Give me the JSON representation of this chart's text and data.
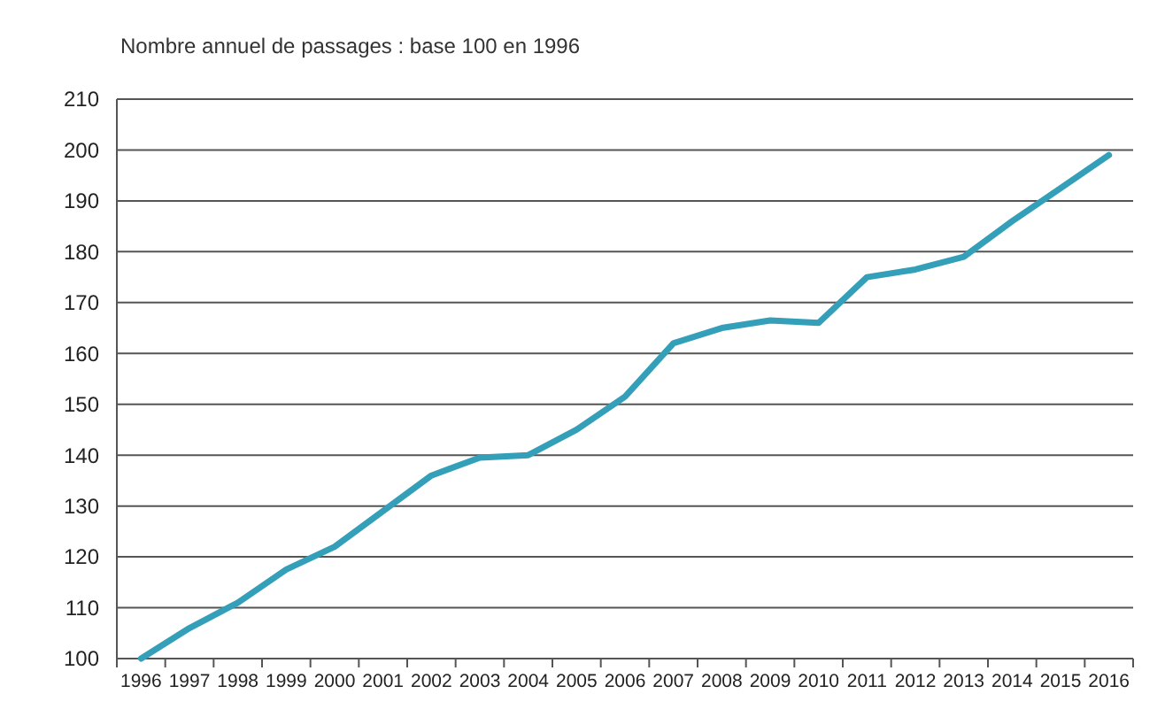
{
  "chart_data": {
    "type": "line",
    "title": "Nombre annuel de passages : base 100 en 1996",
    "categories": [
      "1996",
      "1997",
      "1998",
      "1999",
      "2000",
      "2001",
      "2002",
      "2003",
      "2004",
      "2005",
      "2006",
      "2007",
      "2008",
      "2009",
      "2010",
      "2011",
      "2012",
      "2013",
      "2014",
      "2015",
      "2016"
    ],
    "series": [
      {
        "color": "#339fb9",
        "values": [
          100,
          106,
          111,
          117.5,
          122,
          129,
          136,
          139.5,
          140,
          145,
          151.5,
          162,
          165,
          166.5,
          166,
          175,
          176.5,
          179,
          186,
          192.5,
          199
        ]
      }
    ],
    "ylim": [
      100,
      210
    ],
    "yticks": [
      100,
      110,
      120,
      130,
      140,
      150,
      160,
      170,
      180,
      190,
      200,
      210
    ],
    "grid": "y",
    "marker": "none",
    "line_style": "solid"
  }
}
